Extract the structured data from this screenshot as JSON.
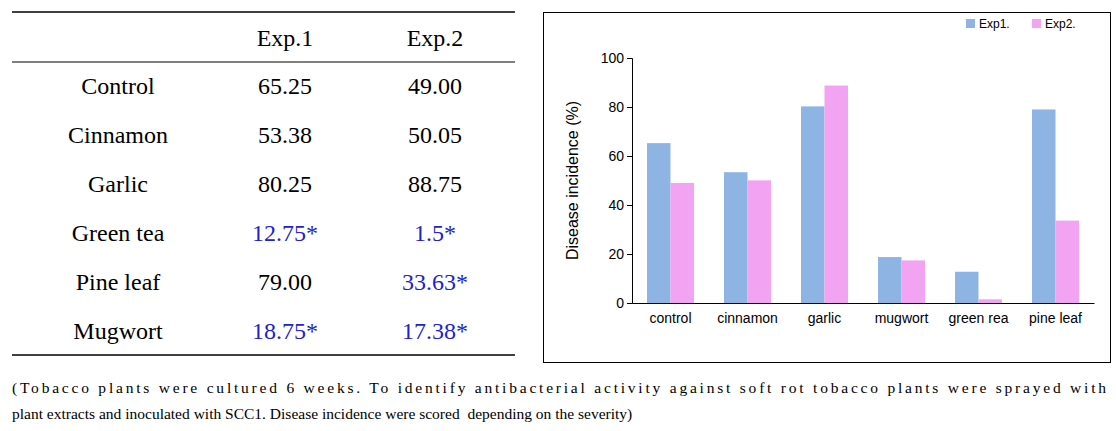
{
  "chart_data": {
    "type": "bar",
    "y_label": "Disease incidence (%)",
    "categories": [
      "control",
      "cinnamon",
      "garlic",
      "mugwort",
      "green rea",
      "pine leaf"
    ],
    "series": [
      {
        "name": "Exp1.",
        "color": "#8db4e2",
        "values": [
          65.25,
          53.38,
          80.25,
          18.75,
          12.75,
          79.0
        ]
      },
      {
        "name": "Exp2.",
        "color": "#f2a3f2",
        "values": [
          49.0,
          50.05,
          88.75,
          17.38,
          1.5,
          33.63
        ]
      }
    ],
    "ylim": [
      0,
      100
    ],
    "yticks": [
      0,
      20,
      40,
      60,
      80,
      100
    ],
    "grid": false,
    "legend": "top-right"
  },
  "table": {
    "header": [
      "Exp.1",
      "Exp.2"
    ],
    "rows": [
      [
        "Control",
        "65.25",
        "49.00"
      ],
      [
        "Cinnamon",
        "53.38",
        "50.05"
      ],
      [
        "Garlic",
        "80.25",
        "88.75"
      ],
      [
        "Green tea",
        "12.75*",
        "1.5*"
      ],
      [
        "Pine leaf",
        "79.00",
        "33.63*"
      ],
      [
        "Mugwort",
        "18.75*",
        "17.38*"
      ]
    ]
  },
  "caption": {
    "lines": [
      "(Tobacco plants were cultured 6 weeks. To identify antibacterial activity against soft rot tobacco plants were sprayed with",
      "plant extracts and inoculated with SCC1. Disease incidence were scored  depending on the severity)"
    ]
  }
}
